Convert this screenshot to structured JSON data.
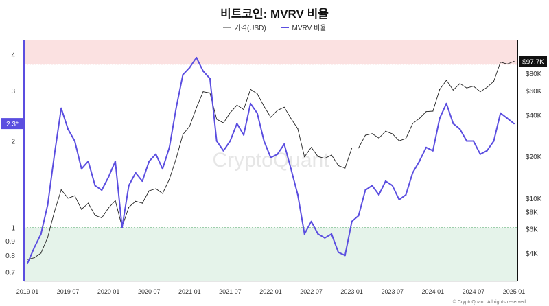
{
  "title": "비트코인: MVRV 비율",
  "legend": [
    {
      "name": "가격(USD)",
      "color": "#9a9a9a"
    },
    {
      "name": "MVRV 비율",
      "color": "#5b4ee0"
    }
  ],
  "watermark": "CryptoQuant",
  "footer": "© CryptoQuant. All rights reserved",
  "colors": {
    "mvrv": "#5b4ee0",
    "price": "#222222",
    "upper_zone": "#fbe1e1",
    "lower_zone": "#e5f3ea",
    "upper_line": "#e28a8a",
    "lower_line": "#8fc79f"
  },
  "chart_data": {
    "type": "line",
    "x_ticks": [
      "2019 01",
      "2019 07",
      "2020 01",
      "2020 07",
      "2021 01",
      "2021 07",
      "2022 01",
      "2022 07",
      "2023 01",
      "2023 07",
      "2024 01",
      "2024 07",
      "2025 01"
    ],
    "left_axis": {
      "label": "",
      "ticks": [
        "0.7",
        "0.8",
        "0.9",
        "1",
        "2",
        "3",
        "4"
      ],
      "scale": "log",
      "range": [
        0.65,
        4.5
      ]
    },
    "right_axis": {
      "label": "",
      "ticks": [
        "$4K",
        "$6K",
        "$8K",
        "$10K",
        "$20K",
        "$40K",
        "$60K",
        "$80K"
      ],
      "scale": "log",
      "range": [
        2500,
        140000
      ]
    },
    "zones": [
      {
        "name": "overvalued",
        "from": 3.7,
        "to": 4.5
      },
      {
        "name": "undervalued",
        "from": 0.65,
        "to": 1.0
      }
    ],
    "current_mvrv_label": "2.3*",
    "current_price_label": "$97.7K",
    "series": [
      {
        "name": "가격(USD)",
        "axis": "right",
        "x": [
          "2019-01",
          "2019-02",
          "2019-03",
          "2019-04",
          "2019-05",
          "2019-06",
          "2019-07",
          "2019-08",
          "2019-09",
          "2019-10",
          "2019-11",
          "2019-12",
          "2020-01",
          "2020-02",
          "2020-03",
          "2020-04",
          "2020-05",
          "2020-06",
          "2020-07",
          "2020-08",
          "2020-09",
          "2020-10",
          "2020-11",
          "2020-12",
          "2021-01",
          "2021-02",
          "2021-03",
          "2021-04",
          "2021-05",
          "2021-06",
          "2021-07",
          "2021-08",
          "2021-09",
          "2021-10",
          "2021-11",
          "2021-12",
          "2022-01",
          "2022-02",
          "2022-03",
          "2022-04",
          "2022-05",
          "2022-06",
          "2022-07",
          "2022-08",
          "2022-09",
          "2022-10",
          "2022-11",
          "2022-12",
          "2023-01",
          "2023-02",
          "2023-03",
          "2023-04",
          "2023-05",
          "2023-06",
          "2023-07",
          "2023-08",
          "2023-09",
          "2023-10",
          "2023-11",
          "2023-12",
          "2024-01",
          "2024-02",
          "2024-03",
          "2024-04",
          "2024-05",
          "2024-06",
          "2024-07",
          "2024-08",
          "2024-09",
          "2024-10",
          "2024-11",
          "2024-12",
          "2025-01"
        ],
        "values": [
          3600,
          3700,
          4000,
          5200,
          8000,
          11500,
          10000,
          10400,
          8300,
          9200,
          7500,
          7200,
          8500,
          9600,
          6200,
          8600,
          9500,
          9200,
          11300,
          11700,
          10800,
          13700,
          19300,
          28900,
          33100,
          45100,
          58900,
          57700,
          37300,
          35000,
          41500,
          47100,
          43800,
          61300,
          57000,
          46200,
          38500,
          43200,
          45500,
          37700,
          31800,
          19900,
          23300,
          20000,
          19400,
          20500,
          17200,
          16500,
          23100,
          23100,
          28500,
          29300,
          27200,
          30500,
          29200,
          26000,
          27000,
          34600,
          37700,
          42300,
          42600,
          61200,
          71300,
          60600,
          67500,
          62700,
          64600,
          59000,
          63300,
          70200,
          96400,
          93400,
          97700
        ]
      },
      {
        "name": "MVRV 비율",
        "axis": "left",
        "x": [
          "2019-01",
          "2019-02",
          "2019-03",
          "2019-04",
          "2019-05",
          "2019-06",
          "2019-07",
          "2019-08",
          "2019-09",
          "2019-10",
          "2019-11",
          "2019-12",
          "2020-01",
          "2020-02",
          "2020-03",
          "2020-04",
          "2020-05",
          "2020-06",
          "2020-07",
          "2020-08",
          "2020-09",
          "2020-10",
          "2020-11",
          "2020-12",
          "2021-01",
          "2021-02",
          "2021-03",
          "2021-04",
          "2021-05",
          "2021-06",
          "2021-07",
          "2021-08",
          "2021-09",
          "2021-10",
          "2021-11",
          "2021-12",
          "2022-01",
          "2022-02",
          "2022-03",
          "2022-04",
          "2022-05",
          "2022-06",
          "2022-07",
          "2022-08",
          "2022-09",
          "2022-10",
          "2022-11",
          "2022-12",
          "2023-01",
          "2023-02",
          "2023-03",
          "2023-04",
          "2023-05",
          "2023-06",
          "2023-07",
          "2023-08",
          "2023-09",
          "2023-10",
          "2023-11",
          "2023-12",
          "2024-01",
          "2024-02",
          "2024-03",
          "2024-04",
          "2024-05",
          "2024-06",
          "2024-07",
          "2024-08",
          "2024-09",
          "2024-10",
          "2024-11",
          "2024-12",
          "2025-01"
        ],
        "values": [
          0.75,
          0.85,
          0.95,
          1.2,
          1.8,
          2.6,
          2.2,
          2.0,
          1.6,
          1.7,
          1.4,
          1.35,
          1.5,
          1.7,
          1.0,
          1.4,
          1.55,
          1.45,
          1.7,
          1.8,
          1.6,
          1.9,
          2.6,
          3.4,
          3.6,
          3.9,
          3.5,
          3.3,
          2.0,
          1.85,
          2.0,
          2.3,
          2.1,
          2.7,
          2.5,
          2.0,
          1.75,
          1.8,
          1.95,
          1.6,
          1.3,
          0.95,
          1.05,
          0.95,
          0.92,
          0.95,
          0.82,
          0.8,
          1.05,
          1.1,
          1.35,
          1.4,
          1.3,
          1.45,
          1.4,
          1.25,
          1.3,
          1.55,
          1.7,
          1.9,
          1.85,
          2.4,
          2.7,
          2.3,
          2.2,
          2.0,
          2.0,
          1.8,
          1.85,
          2.0,
          2.5,
          2.4,
          2.3
        ]
      }
    ]
  }
}
